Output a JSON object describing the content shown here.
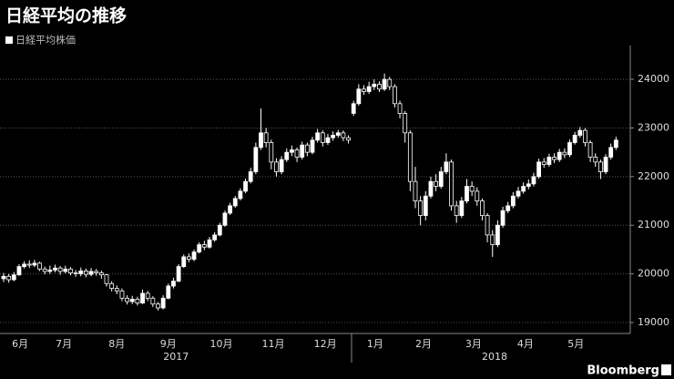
{
  "chart_data": {
    "type": "candlestick",
    "title": "日経平均の推移",
    "legend_label": "日経平均株価",
    "brand": "Bloomberg",
    "color": "#ffffff",
    "ylim": [
      18775,
      24695
    ],
    "yticks": [
      19000,
      20000,
      21000,
      22000,
      23000,
      24000
    ],
    "grid": true,
    "xticks": [
      {
        "value": 3.2,
        "label": "6月"
      },
      {
        "value": 11.7,
        "label": "7月"
      },
      {
        "value": 22,
        "label": "8月"
      },
      {
        "value": 32,
        "label": "9月"
      },
      {
        "value": 42.3,
        "label": "10月"
      },
      {
        "value": 52.4,
        "label": "11月"
      },
      {
        "value": 62.5,
        "label": "12月"
      },
      {
        "value": 72.2,
        "label": "1月"
      },
      {
        "value": 81.6,
        "label": "2月"
      },
      {
        "value": 91.3,
        "label": "3月"
      },
      {
        "value": 101.4,
        "label": "4月"
      },
      {
        "value": 111.2,
        "label": "5月"
      }
    ],
    "year_labels": [
      {
        "value": 33.5,
        "label": "2017"
      },
      {
        "value": 95.4,
        "label": "2018"
      }
    ],
    "open": [
      19900,
      19950,
      19880,
      19980,
      20150,
      20200,
      20180,
      20220,
      20100,
      20050,
      20080,
      20120,
      20050,
      20100,
      20020,
      20000,
      20060,
      19990,
      20050,
      20020,
      19980,
      19800,
      19700,
      19650,
      19500,
      19430,
      19480,
      19400,
      19600,
      19500,
      19380,
      19300,
      19500,
      19750,
      19850,
      20150,
      20350,
      20300,
      20450,
      20600,
      20550,
      20700,
      20800,
      21000,
      21250,
      21400,
      21550,
      21700,
      21900,
      22100,
      22600,
      22900,
      22700,
      22300,
      22100,
      22350,
      22500,
      22550,
      22400,
      22650,
      22500,
      22750,
      22900,
      22700,
      22800,
      22850,
      22900,
      22800,
      23300,
      23500,
      23800,
      23750,
      23850,
      23900,
      23800,
      24000,
      23850,
      23500,
      23300,
      22900,
      21900,
      21500,
      21200,
      21600,
      21900,
      21800,
      22100,
      22300,
      21400,
      21200,
      21500,
      21800,
      21700,
      21500,
      21200,
      20800,
      20600,
      21000,
      21300,
      21400,
      21600,
      21700,
      21800,
      21850,
      22000,
      22300,
      22250,
      22400,
      22350,
      22500,
      22450,
      22700,
      22850,
      22950,
      22700,
      22400,
      22300,
      22100,
      22400,
      22600
    ],
    "high": [
      20020,
      20000,
      20040,
      20200,
      20260,
      20280,
      20290,
      20250,
      20150,
      20170,
      20190,
      20160,
      20170,
      20140,
      20080,
      20130,
      20110,
      20120,
      20100,
      20070,
      20000,
      19850,
      19760,
      19700,
      19560,
      19550,
      19530,
      19680,
      19650,
      19540,
      19420,
      19560,
      19800,
      19920,
      20200,
      20400,
      20420,
      20500,
      20650,
      20680,
      20760,
      20860,
      21050,
      21300,
      21460,
      21600,
      21760,
      21960,
      22180,
      22700,
      23400,
      23000,
      22760,
      22380,
      22420,
      22580,
      22640,
      22600,
      22720,
      22700,
      22820,
      22980,
      22950,
      22880,
      22930,
      22960,
      22950,
      22850,
      23560,
      23900,
      23880,
      23950,
      24000,
      23960,
      24120,
      24050,
      23900,
      23560,
      23350,
      22950,
      22200,
      21600,
      21700,
      22000,
      22050,
      22200,
      22480,
      22350,
      21500,
      21580,
      21950,
      21900,
      21780,
      21550,
      21250,
      20900,
      21100,
      21380,
      21480,
      21680,
      21790,
      21880,
      21940,
      22080,
      22370,
      22380,
      22470,
      22480,
      22570,
      22580,
      22760,
      22920,
      23020,
      23000,
      22750,
      22480,
      22350,
      22460,
      22680,
      22820
    ],
    "low": [
      19830,
      19820,
      19850,
      19960,
      20110,
      20120,
      20140,
      20060,
      19990,
      20000,
      20030,
      19980,
      20010,
      19970,
      19940,
      19950,
      19930,
      19950,
      19960,
      19900,
      19740,
      19640,
      19580,
      19440,
      19370,
      19380,
      19350,
      19380,
      19440,
      19320,
      19250,
      19270,
      19480,
      19700,
      19830,
      20120,
      20240,
      20260,
      20420,
      20490,
      20520,
      20660,
      20770,
      20970,
      21210,
      21360,
      21510,
      21660,
      21860,
      22050,
      22550,
      22600,
      22150,
      22000,
      22050,
      22300,
      22420,
      22300,
      22350,
      22420,
      22460,
      22700,
      22620,
      22650,
      22740,
      22800,
      22730,
      22680,
      23250,
      23460,
      23680,
      23700,
      23780,
      23740,
      23760,
      23780,
      23420,
      23200,
      22700,
      21700,
      21350,
      21000,
      21100,
      21550,
      21700,
      21750,
      22050,
      21300,
      21050,
      21150,
      21450,
      21600,
      21400,
      21100,
      20650,
      20350,
      20550,
      20950,
      21250,
      21350,
      21550,
      21650,
      21740,
      21800,
      21960,
      22180,
      22200,
      22280,
      22300,
      22380,
      22400,
      22660,
      22800,
      22620,
      22300,
      22200,
      21950,
      22050,
      22350,
      22550
    ],
    "close": [
      19950,
      19880,
      19980,
      20150,
      20200,
      20180,
      20220,
      20100,
      20050,
      20080,
      20120,
      20050,
      20100,
      20020,
      20000,
      20060,
      19990,
      20050,
      20020,
      19980,
      19800,
      19700,
      19650,
      19500,
      19430,
      19480,
      19400,
      19600,
      19500,
      19380,
      19300,
      19500,
      19750,
      19850,
      20150,
      20350,
      20300,
      20450,
      20600,
      20550,
      20700,
      20800,
      21000,
      21250,
      21400,
      21550,
      21700,
      21900,
      22100,
      22600,
      22900,
      22700,
      22300,
      22100,
      22350,
      22500,
      22550,
      22400,
      22650,
      22500,
      22750,
      22900,
      22700,
      22800,
      22850,
      22900,
      22800,
      22750,
      23500,
      23800,
      23750,
      23850,
      23900,
      23800,
      24000,
      23850,
      23500,
      23300,
      22900,
      21900,
      21500,
      21200,
      21600,
      21900,
      21800,
      22100,
      22300,
      21400,
      21200,
      21500,
      21800,
      21700,
      21500,
      21200,
      20800,
      20600,
      21000,
      21300,
      21400,
      21600,
      21700,
      21800,
      21850,
      22000,
      22300,
      22250,
      22400,
      22350,
      22500,
      22450,
      22700,
      22850,
      22950,
      22700,
      22400,
      22300,
      22100,
      22400,
      22600,
      22750
    ]
  }
}
